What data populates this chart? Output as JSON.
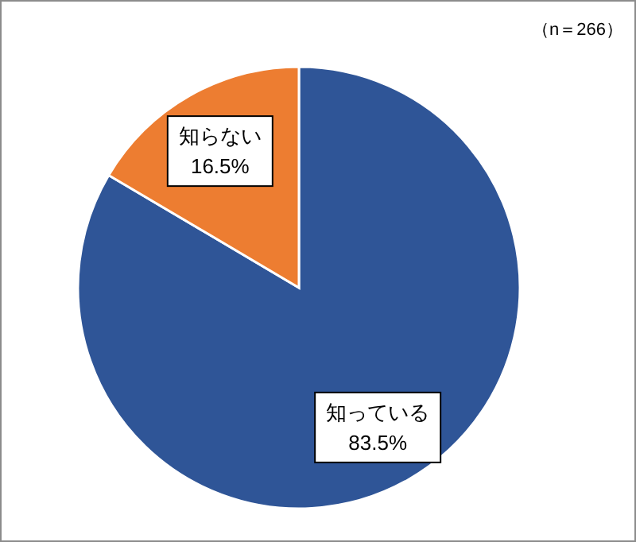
{
  "chart_data": {
    "type": "pie",
    "categories": [
      "知っている",
      "知らない"
    ],
    "values": [
      83.5,
      16.5
    ],
    "colors": [
      "#2f5597",
      "#ed7d31"
    ],
    "value_labels": [
      "83.5%",
      "16.5%"
    ],
    "annotations": [
      "（n＝266）"
    ]
  }
}
